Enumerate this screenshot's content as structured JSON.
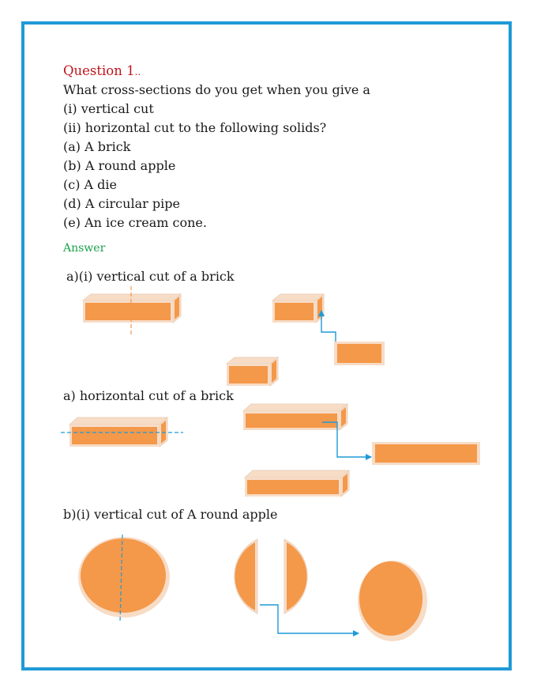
{
  "question": {
    "title": "Question 1",
    "title_suffix": "..",
    "lines": [
      "What cross-sections do you get when you give a",
      "(i) vertical cut",
      "(ii) horizontal cut to the following solids?",
      "(a) A brick",
      "(b) A round apple",
      "(c) A die",
      "(d) A circular pipe",
      "(e) An ice cream cone."
    ]
  },
  "answer_label": "Answer",
  "captions": {
    "brick_vertical": "a)(i) vertical cut of a brick",
    "brick_horizontal": "a) horizontal cut of a brick",
    "apple_vertical": "b)(i) vertical cut of A round apple"
  },
  "colors": {
    "border": "#1f9ad6",
    "shape_fill": "#f4984a",
    "shape_outline": "#f7dcc6",
    "cut_line": "#f4984a",
    "arrow": "#1f9ad6",
    "question_title": "#c0141c",
    "answer": "#1aa14b"
  }
}
